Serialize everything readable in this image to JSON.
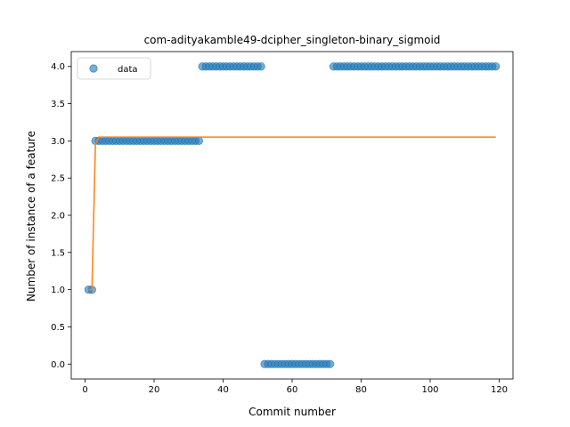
{
  "chart_data": {
    "type": "scatter",
    "title": "com-adityakamble49-dcipher_singleton-binary_sigmoid",
    "xlabel": "Commit number",
    "ylabel": "Number of instance of a feature",
    "xlim": [
      -4,
      124
    ],
    "ylim": [
      -0.2,
      4.2
    ],
    "xticks": [
      0,
      20,
      40,
      60,
      80,
      100,
      120
    ],
    "yticks": [
      0.0,
      0.5,
      1.0,
      1.5,
      2.0,
      2.5,
      3.0,
      3.5,
      4.0
    ],
    "ytick_labels": [
      "0.0",
      "0.5",
      "1.0",
      "1.5",
      "2.0",
      "2.5",
      "3.0",
      "3.5",
      "4.0"
    ],
    "legend": {
      "placement": "top-left",
      "entries": [
        "data"
      ]
    },
    "colors": {
      "data": "#1f77b4",
      "fit": "#ff7f0e"
    },
    "series": [
      {
        "name": "data",
        "kind": "scatter",
        "segments": [
          {
            "x_from": 1,
            "x_to": 2,
            "y": 1
          },
          {
            "x_from": 3,
            "x_to": 33,
            "y": 3
          },
          {
            "x_from": 34,
            "x_to": 51,
            "y": 4
          },
          {
            "x_from": 52,
            "x_to": 71,
            "y": 0
          },
          {
            "x_from": 72,
            "x_to": 119,
            "y": 4
          }
        ]
      },
      {
        "kind": "line",
        "x": [
          1,
          2,
          3,
          4,
          10,
          20,
          40,
          60,
          80,
          100,
          119
        ],
        "y": [
          1.0,
          1.0,
          2.95,
          3.05,
          3.05,
          3.05,
          3.05,
          3.05,
          3.05,
          3.05,
          3.05
        ]
      }
    ]
  }
}
